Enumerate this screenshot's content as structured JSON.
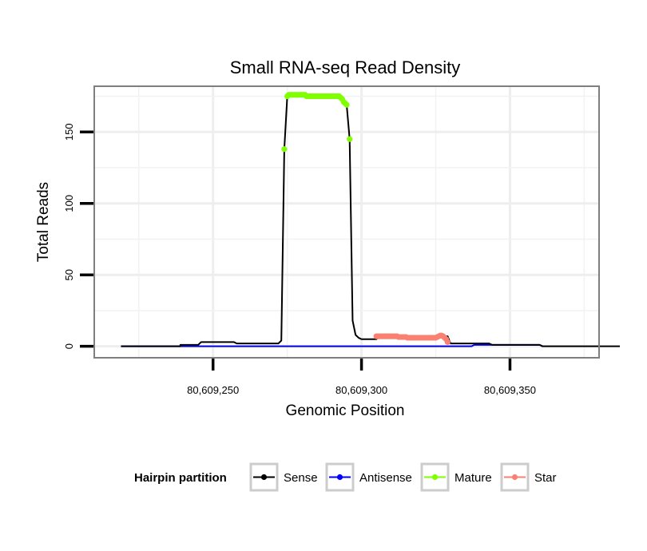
{
  "chart_data": {
    "type": "line",
    "title": "Small RNA-seq Read Density",
    "xlabel": "Genomic Position",
    "ylabel": "Total Reads",
    "xlim": [
      80609210,
      80609380
    ],
    "ylim": [
      -8,
      182
    ],
    "x_ticks": [
      {
        "value": 80609250,
        "label": "80,609,250"
      },
      {
        "value": 80609300,
        "label": "80,609,300"
      },
      {
        "value": 80609350,
        "label": "80,609,350"
      }
    ],
    "y_ticks": [
      {
        "value": 0,
        "label": "0"
      },
      {
        "value": 50,
        "label": "50"
      },
      {
        "value": 100,
        "label": "100"
      },
      {
        "value": 150,
        "label": "150"
      }
    ],
    "x_minor_gridlines": [
      80609225,
      80609275,
      80609325,
      80609375
    ],
    "y_minor_gridlines": [
      25,
      75,
      125,
      175
    ],
    "grid": true,
    "legend": {
      "title": "Hairpin partition",
      "position": "bottom",
      "entries": [
        {
          "name": "Sense",
          "color": "#000000"
        },
        {
          "name": "Antisense",
          "color": "#0000ff"
        },
        {
          "name": "Mature",
          "color": "#7fff00"
        },
        {
          "name": "Star",
          "color": "#fa8072"
        }
      ]
    },
    "series": [
      {
        "name": "Sense",
        "color": "#000000",
        "markers": false,
        "points": [
          [
            80609219,
            0
          ],
          [
            80609239,
            0
          ],
          [
            80609239,
            1
          ],
          [
            80609245,
            1
          ],
          [
            80609246,
            3
          ],
          [
            80609257,
            3
          ],
          [
            80609258,
            2
          ],
          [
            80609272,
            2
          ],
          [
            80609273,
            4
          ],
          [
            80609274,
            138
          ],
          [
            80609275,
            175
          ],
          [
            80609281,
            176
          ],
          [
            80609287,
            175
          ],
          [
            80609293,
            174
          ],
          [
            80609294,
            171
          ],
          [
            80609295,
            169
          ],
          [
            80609296,
            145
          ],
          [
            80609297,
            18
          ],
          [
            80609298,
            8
          ],
          [
            80609299,
            6
          ],
          [
            80609300,
            5
          ],
          [
            80609305,
            5
          ],
          [
            80609306,
            7
          ],
          [
            80609316,
            7
          ],
          [
            80609317,
            6
          ],
          [
            80609326,
            6
          ],
          [
            80609327,
            7
          ],
          [
            80609329,
            7
          ],
          [
            80609330,
            2
          ],
          [
            80609343,
            2
          ],
          [
            80609344,
            1
          ],
          [
            80609360,
            1
          ],
          [
            80609361,
            0
          ],
          [
            80609387,
            0
          ]
        ]
      },
      {
        "name": "Antisense",
        "color": "#0000ff",
        "markers": false,
        "points": [
          [
            80609219,
            0
          ],
          [
            80609337,
            0
          ],
          [
            80609338,
            1
          ],
          [
            80609360,
            1
          ],
          [
            80609361,
            0
          ]
        ]
      },
      {
        "name": "Mature",
        "color": "#7fff00",
        "markers": true,
        "points": [
          [
            80609274,
            138
          ],
          [
            80609275,
            175
          ],
          [
            80609275.5,
            176
          ],
          [
            80609276,
            176
          ],
          [
            80609276.5,
            176
          ],
          [
            80609277,
            176
          ],
          [
            80609277.5,
            176
          ],
          [
            80609278,
            176
          ],
          [
            80609278.5,
            176
          ],
          [
            80609279,
            176
          ],
          [
            80609279.5,
            176
          ],
          [
            80609280,
            176
          ],
          [
            80609280.5,
            176
          ],
          [
            80609281,
            176
          ],
          [
            80609281.5,
            175
          ],
          [
            80609282,
            175
          ],
          [
            80609282.5,
            175
          ],
          [
            80609283,
            175
          ],
          [
            80609283.5,
            175
          ],
          [
            80609284,
            175
          ],
          [
            80609284.5,
            175
          ],
          [
            80609285,
            175
          ],
          [
            80609285.5,
            175
          ],
          [
            80609286,
            175
          ],
          [
            80609286.5,
            175
          ],
          [
            80609287,
            175
          ],
          [
            80609287.5,
            175
          ],
          [
            80609288,
            175
          ],
          [
            80609288.5,
            175
          ],
          [
            80609289,
            175
          ],
          [
            80609289.5,
            175
          ],
          [
            80609290,
            175
          ],
          [
            80609290.5,
            175
          ],
          [
            80609291,
            175
          ],
          [
            80609291.5,
            175
          ],
          [
            80609292,
            175
          ],
          [
            80609292.5,
            175
          ],
          [
            80609293,
            174
          ],
          [
            80609293.5,
            173
          ],
          [
            80609294,
            171
          ],
          [
            80609294.5,
            170
          ],
          [
            80609295,
            169
          ],
          [
            80609296,
            145
          ]
        ]
      },
      {
        "name": "Star",
        "color": "#fa8072",
        "markers": true,
        "points": [
          [
            80609305,
            7
          ],
          [
            80609305.5,
            7
          ],
          [
            80609306,
            7
          ],
          [
            80609306.5,
            7
          ],
          [
            80609307,
            7
          ],
          [
            80609307.5,
            7
          ],
          [
            80609308,
            7
          ],
          [
            80609308.5,
            7
          ],
          [
            80609309,
            7
          ],
          [
            80609309.5,
            7
          ],
          [
            80609310,
            7
          ],
          [
            80609310.5,
            7
          ],
          [
            80609311,
            7
          ],
          [
            80609311.5,
            7
          ],
          [
            80609312,
            7
          ],
          [
            80609312.5,
            6.5
          ],
          [
            80609313,
            6.5
          ],
          [
            80609313.5,
            6.5
          ],
          [
            80609314,
            6.5
          ],
          [
            80609314.5,
            6.5
          ],
          [
            80609315,
            6.5
          ],
          [
            80609315.5,
            6
          ],
          [
            80609316,
            6
          ],
          [
            80609316.5,
            6
          ],
          [
            80609317,
            6
          ],
          [
            80609317.5,
            6
          ],
          [
            80609318,
            6
          ],
          [
            80609318.5,
            6
          ],
          [
            80609319,
            6
          ],
          [
            80609319.5,
            6
          ],
          [
            80609320,
            6
          ],
          [
            80609320.5,
            6
          ],
          [
            80609321,
            6
          ],
          [
            80609321.5,
            6
          ],
          [
            80609322,
            6
          ],
          [
            80609322.5,
            6
          ],
          [
            80609323,
            6
          ],
          [
            80609323.5,
            6
          ],
          [
            80609324,
            6
          ],
          [
            80609324.5,
            6
          ],
          [
            80609325,
            6
          ],
          [
            80609325.5,
            6.5
          ],
          [
            80609326,
            7
          ],
          [
            80609326.5,
            7.5
          ],
          [
            80609327,
            7.5
          ],
          [
            80609327.5,
            7
          ],
          [
            80609328,
            6
          ],
          [
            80609328.5,
            5
          ],
          [
            80609329,
            3
          ]
        ]
      }
    ]
  }
}
